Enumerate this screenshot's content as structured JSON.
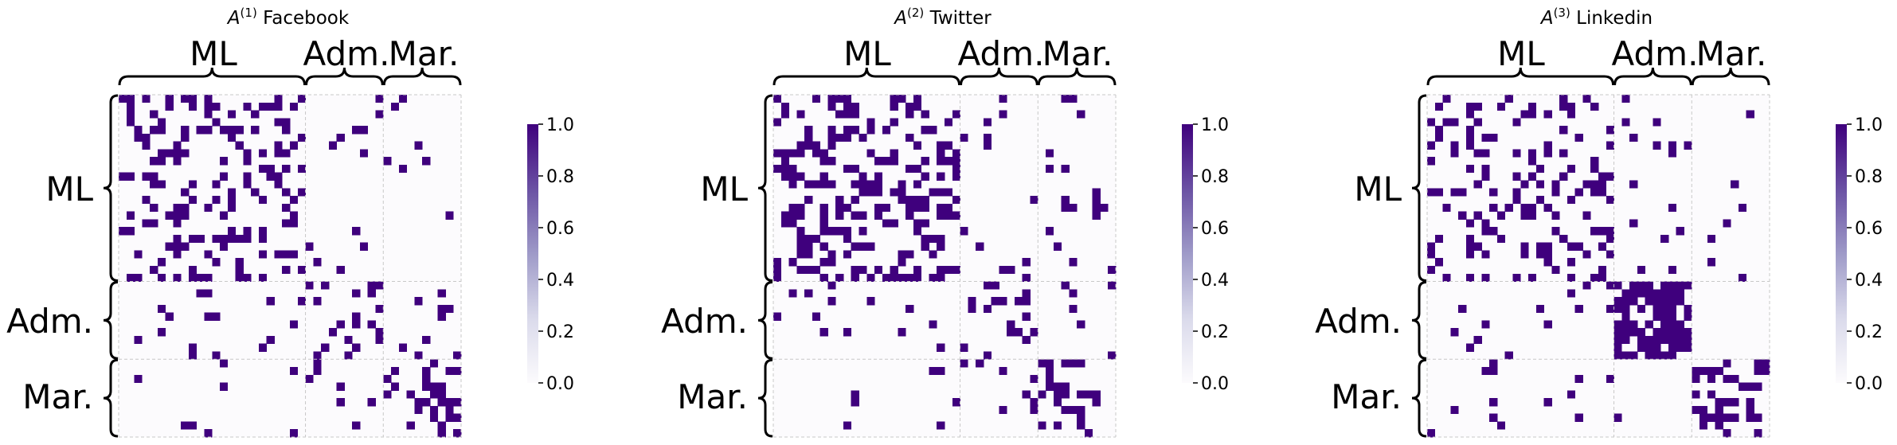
{
  "chart_data": [
    {
      "type": "heatmap",
      "title_prefix": "A",
      "title_superscript": "(1)",
      "title_suffix": " Facebook",
      "groups": [
        {
          "label": "ML",
          "size": 24
        },
        {
          "label": "Adm.",
          "size": 10
        },
        {
          "label": "Mar.",
          "size": 10
        }
      ],
      "value_range": [
        0.0,
        1.0
      ],
      "colorbar_ticks": [
        "0.0",
        "0.2",
        "0.4",
        "0.6",
        "0.8",
        "1.0"
      ],
      "colormap": {
        "low": "#fcfbfd",
        "high": "#3f007d"
      },
      "density": {
        "ML-ML": 0.3,
        "ML-Adm.": 0.05,
        "ML-Mar.": 0.04,
        "Adm.-Adm.": 0.2,
        "Adm.-Mar.": 0.06,
        "Mar.-Mar.": 0.3
      },
      "seed": 11
    },
    {
      "type": "heatmap",
      "title_prefix": "A",
      "title_superscript": "(2)",
      "title_suffix": " Twitter",
      "groups": [
        {
          "label": "ML",
          "size": 24
        },
        {
          "label": "Adm.",
          "size": 10
        },
        {
          "label": "Mar.",
          "size": 10
        }
      ],
      "value_range": [
        0.0,
        1.0
      ],
      "colorbar_ticks": [
        "0.0",
        "0.2",
        "0.4",
        "0.6",
        "0.8",
        "1.0"
      ],
      "colormap": {
        "low": "#fcfbfd",
        "high": "#3f007d"
      },
      "density": {
        "ML-ML": 0.32,
        "ML-Adm.": 0.06,
        "ML-Mar.": 0.05,
        "Adm.-Adm.": 0.22,
        "Adm.-Mar.": 0.07,
        "Mar.-Mar.": 0.32
      },
      "seed": 29
    },
    {
      "type": "heatmap",
      "title_prefix": "A",
      "title_superscript": "(3)",
      "title_suffix": " Linkedin",
      "groups": [
        {
          "label": "ML",
          "size": 24
        },
        {
          "label": "Adm.",
          "size": 10
        },
        {
          "label": "Mar.",
          "size": 10
        }
      ],
      "value_range": [
        0.0,
        1.0
      ],
      "colorbar_ticks": [
        "0.0",
        "0.2",
        "0.4",
        "0.6",
        "0.8",
        "1.0"
      ],
      "colormap": {
        "low": "#fcfbfd",
        "high": "#3f007d"
      },
      "density": {
        "ML-ML": 0.22,
        "ML-Adm.": 0.04,
        "ML-Mar.": 0.04,
        "Adm.-Adm.": 0.82,
        "Adm.-Mar.": 0.02,
        "Mar.-Mar.": 0.35
      },
      "seed": 47
    }
  ]
}
